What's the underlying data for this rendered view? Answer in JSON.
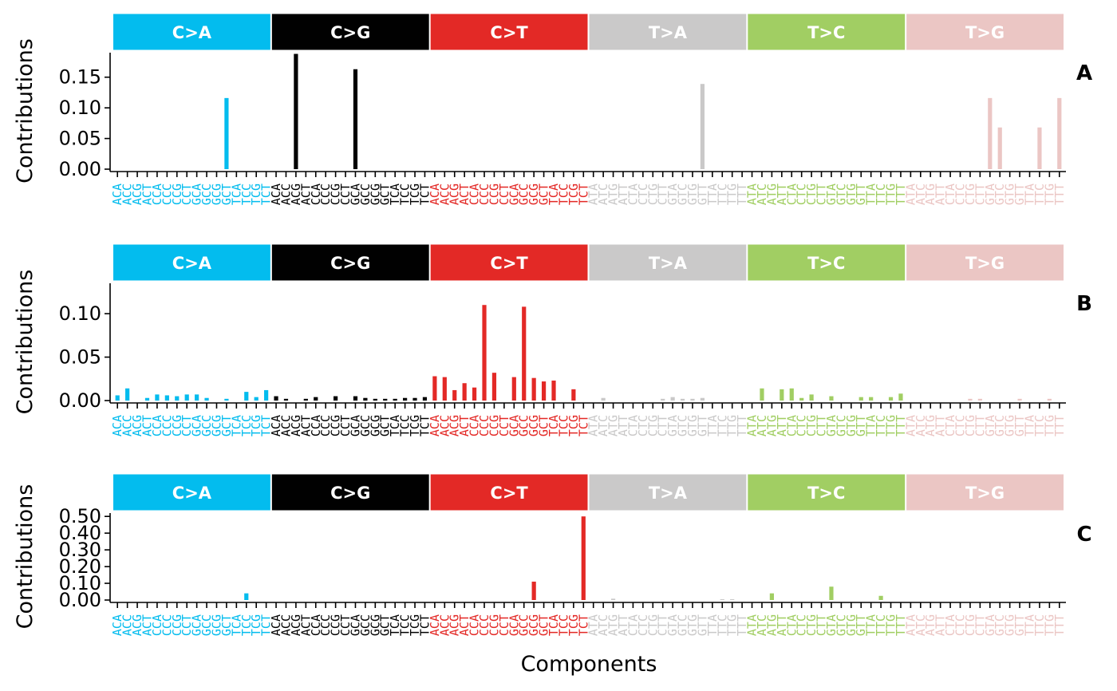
{
  "x_label": "Components",
  "y_label": "Contributions",
  "mutation_types": [
    "C>A",
    "C>G",
    "C>T",
    "T>A",
    "T>C",
    "T>G"
  ],
  "type_colors": [
    "#03BCEE",
    "#010101",
    "#E32926",
    "#CAC9C9",
    "#A1CE63",
    "#EBC6C4"
  ],
  "contexts": [
    "A.A",
    "A.C",
    "A.G",
    "A.T",
    "C.A",
    "C.C",
    "C.G",
    "C.T",
    "G.A",
    "G.C",
    "G.G",
    "G.T",
    "T.A",
    "T.C",
    "T.G",
    "T.T"
  ],
  "chart_data": [
    {
      "type": "bar",
      "panel": "A",
      "ylim": [
        0,
        0.19
      ],
      "yticks": [
        0.0,
        0.05,
        0.1,
        0.15
      ],
      "ytick_labels": [
        "0.00",
        "0.05",
        "0.10",
        "0.15"
      ],
      "values": [
        0,
        0,
        0,
        0,
        0,
        0,
        0,
        0,
        0,
        0,
        0,
        0.116,
        0,
        0,
        0,
        0,
        0,
        0,
        0.188,
        0,
        0,
        0,
        0,
        0,
        0.163,
        0,
        0,
        0,
        0,
        0,
        0,
        0,
        0,
        0,
        0,
        0,
        0,
        0,
        0,
        0,
        0,
        0,
        0,
        0,
        0,
        0,
        0,
        0,
        0,
        0,
        0,
        0,
        0,
        0,
        0,
        0,
        0,
        0,
        0,
        0.139,
        0,
        0,
        0,
        0,
        0,
        0,
        0,
        0,
        0,
        0,
        0,
        0,
        0,
        0,
        0,
        0,
        0,
        0,
        0,
        0,
        0,
        0,
        0,
        0,
        0,
        0,
        0,
        0,
        0.116,
        0.068,
        0,
        0,
        0,
        0.068,
        0,
        0.116
      ]
    },
    {
      "type": "bar",
      "panel": "B",
      "ylim": [
        0,
        0.135
      ],
      "yticks": [
        0.0,
        0.05,
        0.1
      ],
      "ytick_labels": [
        "0.00",
        "0.05",
        "0.10"
      ],
      "values": [
        0.006,
        0.014,
        0,
        0.003,
        0.007,
        0.006,
        0.005,
        0.007,
        0.007,
        0.003,
        0,
        0.002,
        0,
        0.01,
        0.004,
        0.012,
        0.005,
        0.002,
        0,
        0.002,
        0.004,
        0,
        0.005,
        0,
        0.005,
        0.003,
        0.002,
        0.002,
        0.002,
        0.003,
        0.003,
        0.004,
        0.028,
        0.027,
        0.012,
        0.02,
        0.015,
        0.11,
        0.032,
        0,
        0.027,
        0.108,
        0.026,
        0.022,
        0.023,
        0,
        0.013,
        0,
        0,
        0.003,
        0,
        0,
        0,
        0,
        0,
        0.002,
        0.004,
        0.002,
        0.002,
        0.003,
        0,
        0,
        0,
        0,
        0,
        0.014,
        0,
        0.013,
        0.014,
        0.003,
        0.007,
        0,
        0.005,
        0,
        0,
        0.004,
        0.004,
        0,
        0.004,
        0.008,
        0,
        0,
        0,
        0,
        0,
        0,
        0.002,
        0.002,
        0,
        0,
        0,
        0.002,
        0,
        0,
        0.002,
        0
      ]
    },
    {
      "type": "bar",
      "panel": "C",
      "ylim": [
        0,
        0.52
      ],
      "yticks": [
        0.0,
        0.1,
        0.2,
        0.3,
        0.4,
        0.5
      ],
      "ytick_labels": [
        "0.00",
        "0.10",
        "0.20",
        "0.30",
        "0.40",
        "0.50"
      ],
      "values": [
        0,
        0,
        0,
        0,
        0,
        0,
        0,
        0,
        0,
        0,
        0,
        0,
        0,
        0.04,
        0,
        0,
        0,
        0,
        0,
        0,
        0,
        0,
        0,
        0,
        0,
        0,
        0,
        0,
        0,
        0,
        0,
        0,
        0,
        0,
        0,
        0,
        0,
        0,
        0,
        0,
        0,
        0,
        0.11,
        0,
        0,
        0,
        0,
        0.5,
        0,
        0,
        0.008,
        0,
        0,
        0,
        0,
        0,
        0,
        0,
        0,
        0,
        0,
        0.005,
        0.005,
        0,
        0,
        0,
        0.04,
        0,
        0,
        0,
        0,
        0,
        0.08,
        0,
        0,
        0,
        0,
        0.025,
        0,
        0,
        0,
        0,
        0,
        0,
        0,
        0,
        0,
        0,
        0,
        0,
        0,
        0,
        0,
        0,
        0,
        0
      ]
    }
  ]
}
